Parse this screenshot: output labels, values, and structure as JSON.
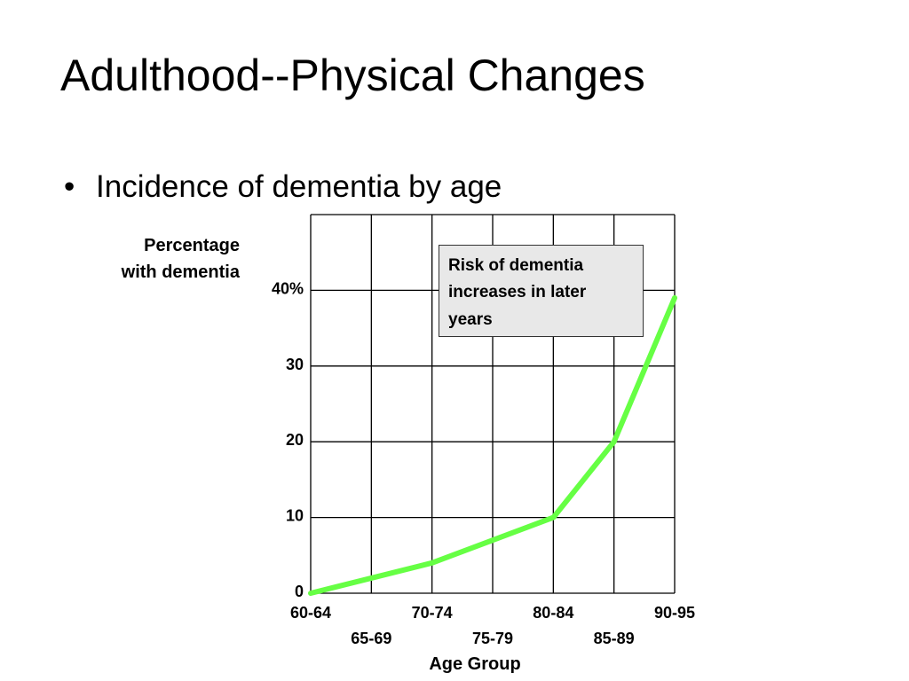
{
  "slide": {
    "title": "Adulthood--Physical Changes",
    "bullet": "Incidence of dementia by age"
  },
  "chart_data": {
    "type": "line",
    "ylabel": "Percentage\nwith dementia",
    "xlabel": "Age Group",
    "categories": [
      "60-64",
      "65-69",
      "70-74",
      "75-79",
      "80-84",
      "85-89",
      "90-95"
    ],
    "ylim": [
      0,
      50
    ],
    "y_ticks": [
      {
        "value": 0,
        "label": "0"
      },
      {
        "value": 10,
        "label": "10"
      },
      {
        "value": 20,
        "label": "20"
      },
      {
        "value": 30,
        "label": "30"
      },
      {
        "value": 40,
        "label": "40%"
      }
    ],
    "series": [
      {
        "x": [
          0,
          1,
          2,
          3,
          4,
          5,
          6
        ],
        "values": [
          0,
          2,
          4,
          7,
          10,
          20,
          39
        ]
      }
    ],
    "line_color": "#66ff44",
    "callout_bg": "#e8e8e8",
    "annotation": "Risk of dementia\nincreases in later\nyears",
    "grid": true,
    "grid_columns": 6
  }
}
